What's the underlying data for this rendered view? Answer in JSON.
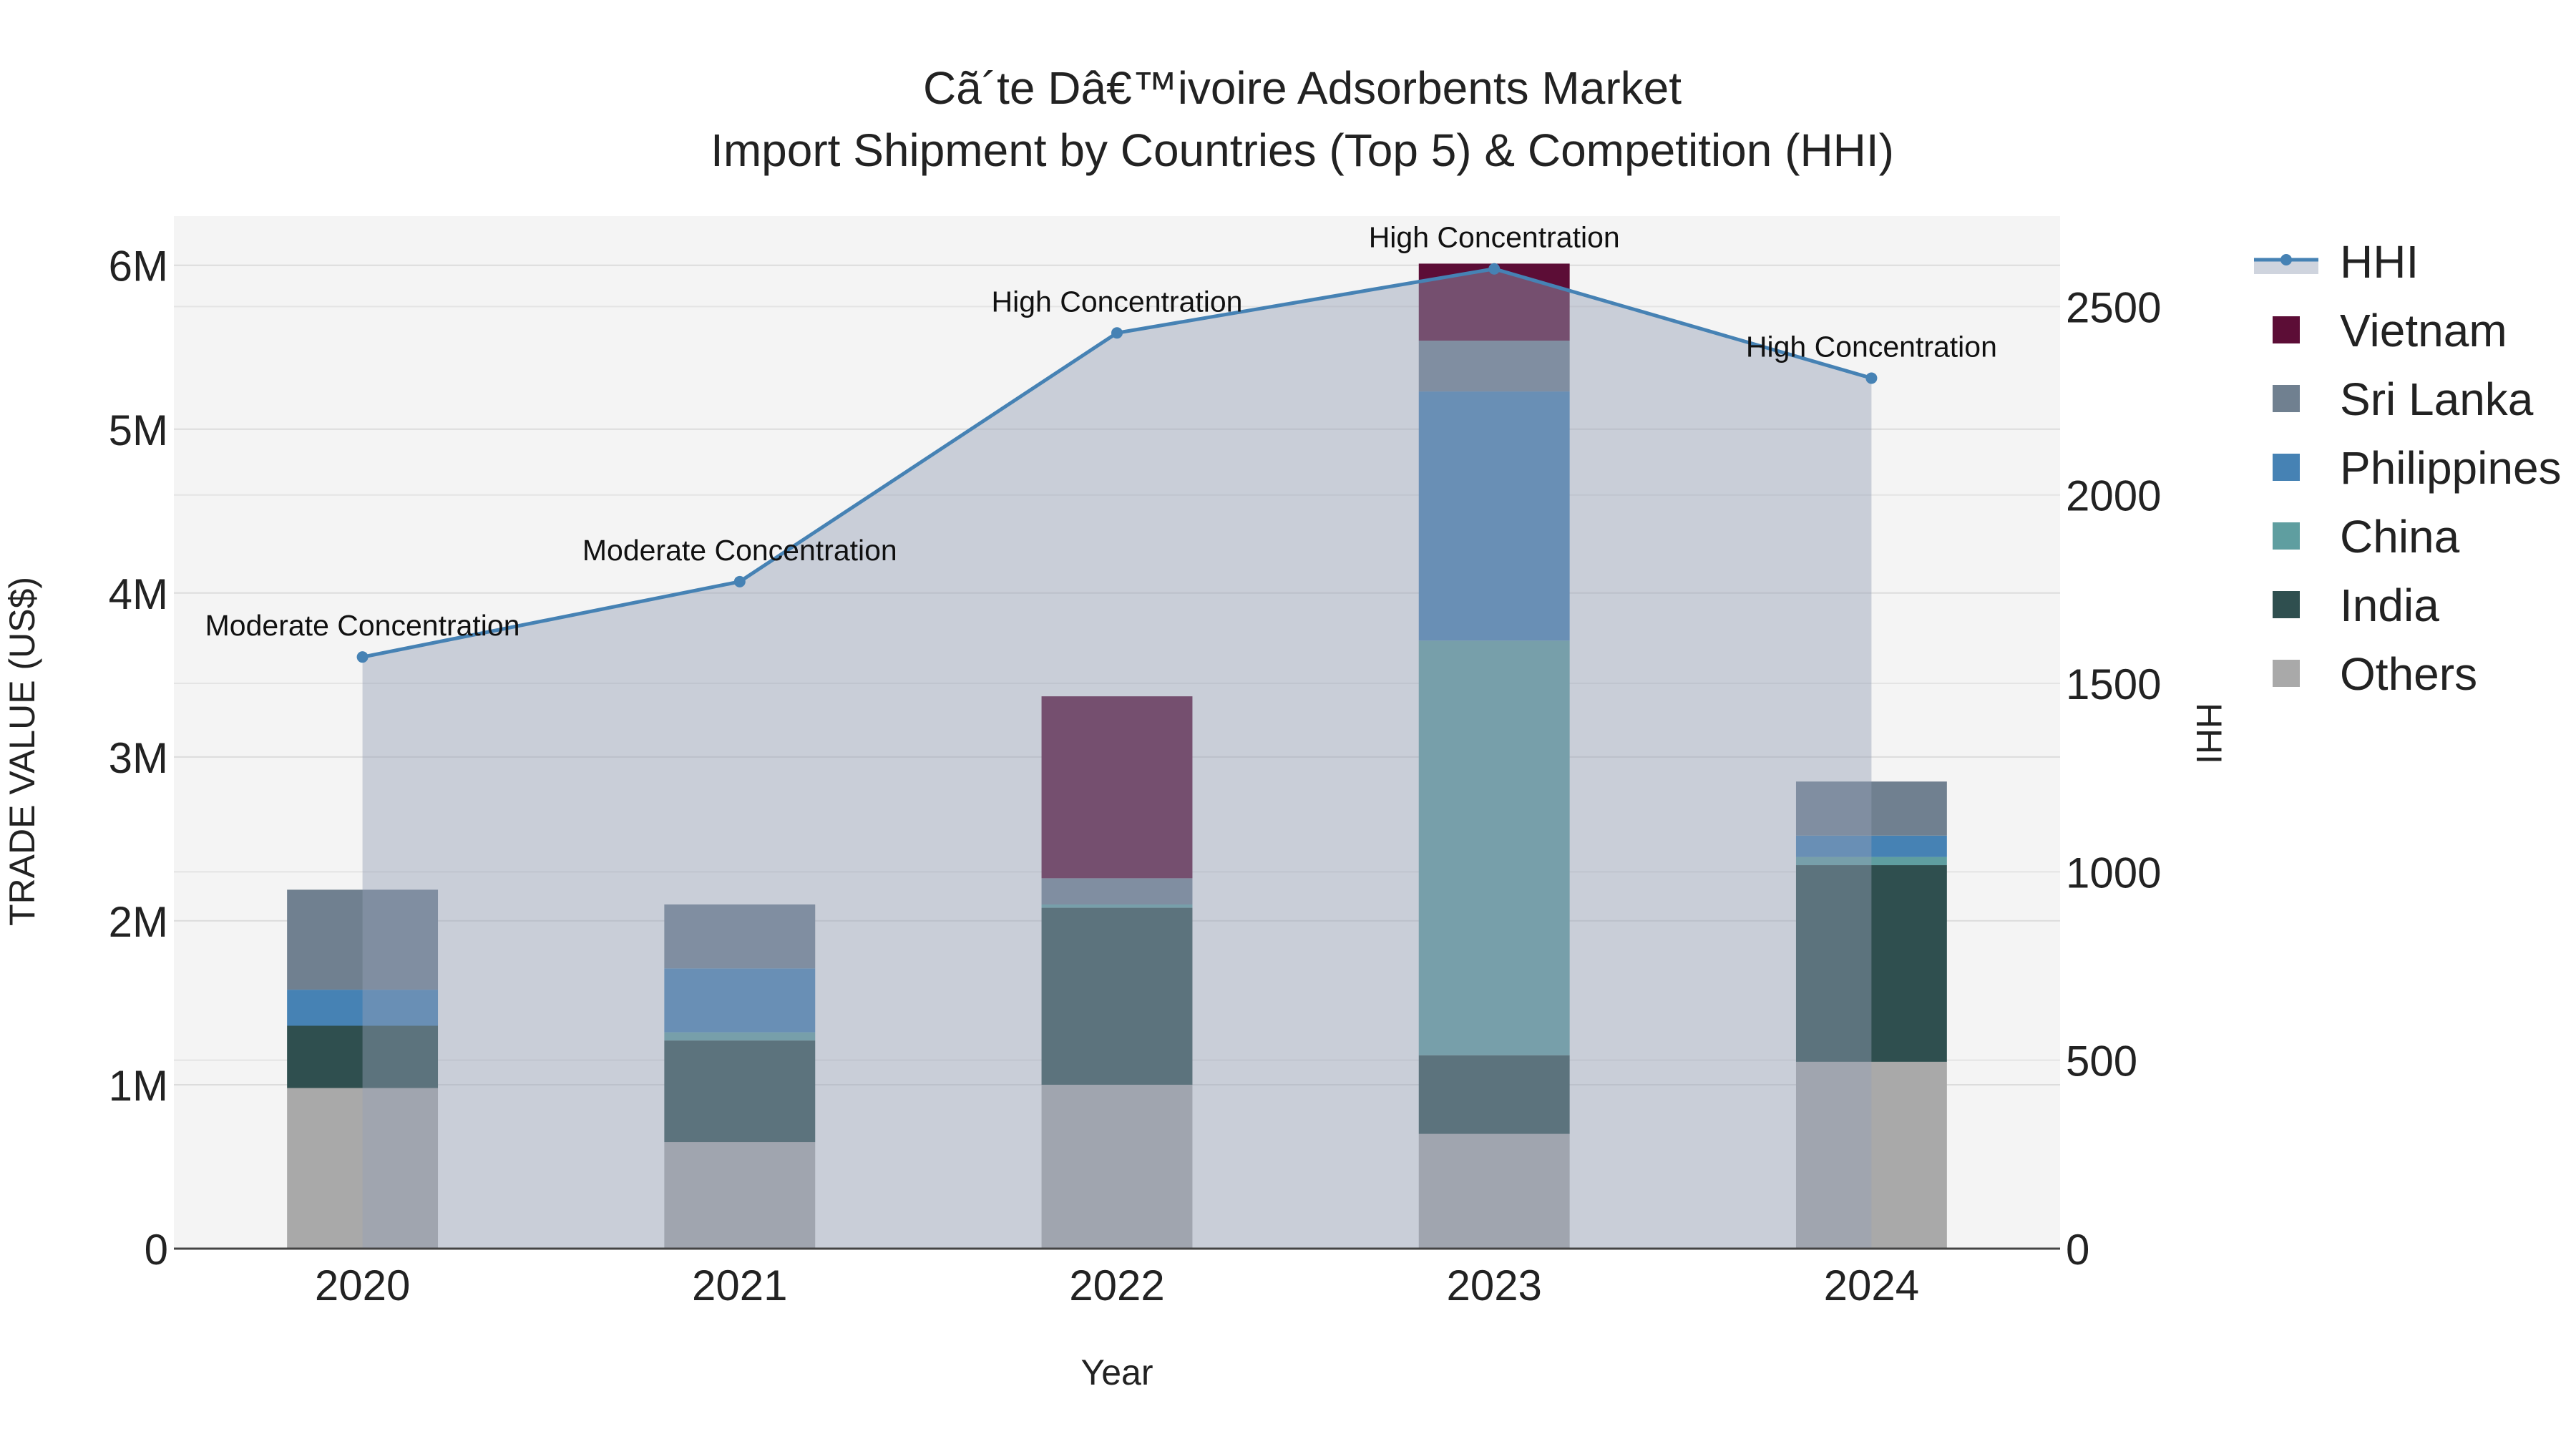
{
  "chart_data": {
    "type": "bar",
    "title_line1": "Cã´te Dâ€™ivoire Adsorbents Market",
    "title_line2": "Import Shipment by Countries (Top 5) & Competition (HHI)",
    "xlabel": "Year",
    "ylabel": "TRADE VALUE (US$)",
    "y2label": "HHI",
    "categories": [
      "2020",
      "2021",
      "2022",
      "2023",
      "2024"
    ],
    "ylim": [
      0,
      6300000
    ],
    "y2lim": [
      0,
      2740
    ],
    "y_ticks": [
      {
        "value": 0,
        "label": "0"
      },
      {
        "value": 1000000,
        "label": "1M"
      },
      {
        "value": 2000000,
        "label": "2M"
      },
      {
        "value": 3000000,
        "label": "3M"
      },
      {
        "value": 4000000,
        "label": "4M"
      },
      {
        "value": 5000000,
        "label": "5M"
      },
      {
        "value": 6000000,
        "label": "6M"
      }
    ],
    "y2_ticks": [
      {
        "value": 0,
        "label": "0"
      },
      {
        "value": 500,
        "label": "500"
      },
      {
        "value": 1000,
        "label": "1000"
      },
      {
        "value": 1500,
        "label": "1500"
      },
      {
        "value": 2000,
        "label": "2000"
      },
      {
        "value": 2500,
        "label": "2500"
      }
    ],
    "series": [
      {
        "name": "Others",
        "color": "#a9a9a9",
        "values": [
          980000,
          650000,
          1000000,
          700000,
          1140000
        ]
      },
      {
        "name": "India",
        "color": "#2f4f4f",
        "values": [
          380000,
          620000,
          1080000,
          480000,
          1200000
        ]
      },
      {
        "name": "China",
        "color": "#5f9ea0",
        "values": [
          0,
          50000,
          20000,
          2530000,
          50000
        ]
      },
      {
        "name": "Philippines",
        "color": "#4682b4",
        "values": [
          220000,
          390000,
          0,
          1520000,
          130000
        ]
      },
      {
        "name": "Sri Lanka",
        "color": "#708090",
        "values": [
          610000,
          390000,
          160000,
          310000,
          330000
        ]
      },
      {
        "name": "Vietnam",
        "color": "#5c0d36",
        "values": [
          0,
          0,
          1110000,
          470000,
          0
        ]
      }
    ],
    "hhi": {
      "name": "HHI",
      "color": "#4682b4",
      "values": [
        1570,
        1770,
        2430,
        2600,
        2310
      ],
      "annotations": [
        "Moderate Concentration",
        "Moderate Concentration",
        "High Concentration",
        "High Concentration",
        "High Concentration"
      ]
    },
    "legend_order": [
      "HHI",
      "Vietnam",
      "Sri Lanka",
      "Philippines",
      "China",
      "India",
      "Others"
    ],
    "legend_position": "right"
  }
}
